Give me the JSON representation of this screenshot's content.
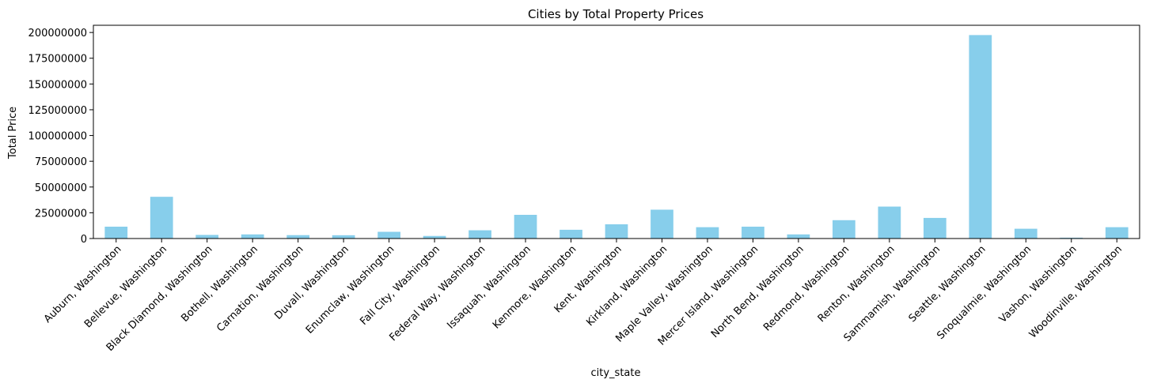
{
  "chart_data": {
    "type": "bar",
    "title": "Cities by Total Property Prices",
    "xlabel": "city_state",
    "ylabel": "Total Price",
    "ylim": [
      0,
      207000000
    ],
    "yticks": [
      0,
      25000000,
      50000000,
      75000000,
      100000000,
      125000000,
      150000000,
      175000000,
      200000000
    ],
    "ytick_labels": [
      "0",
      "25000000",
      "50000000",
      "75000000",
      "100000000",
      "125000000",
      "150000000",
      "175000000",
      "200000000"
    ],
    "grid": false,
    "legend": "none",
    "bar_color": "#87CEEB",
    "categories": [
      "Auburn, Washington",
      "Bellevue, Washington",
      "Black Diamond, Washington",
      "Bothell, Washington",
      "Carnation, Washington",
      "Duvall, Washington",
      "Enumclaw, Washington",
      "Fall City, Washington",
      "Federal Way, Washington",
      "Issaquah, Washington",
      "Kenmore, Washington",
      "Kent, Washington",
      "Kirkland, Washington",
      "Maple Valley, Washington",
      "Mercer Island, Washington",
      "North Bend, Washington",
      "Redmond, Washington",
      "Renton, Washington",
      "Sammamish, Washington",
      "Seattle, Washington",
      "Snoqualmie, Washington",
      "Vashon, Washington",
      "Woodinville, Washington"
    ],
    "values": [
      11500000,
      40500000,
      3500000,
      4000000,
      3300000,
      3200000,
      6500000,
      2500000,
      8000000,
      23000000,
      8500000,
      13800000,
      28000000,
      11000000,
      11500000,
      4000000,
      17800000,
      31000000,
      20000000,
      197500000,
      9500000,
      800000,
      11000000
    ]
  }
}
